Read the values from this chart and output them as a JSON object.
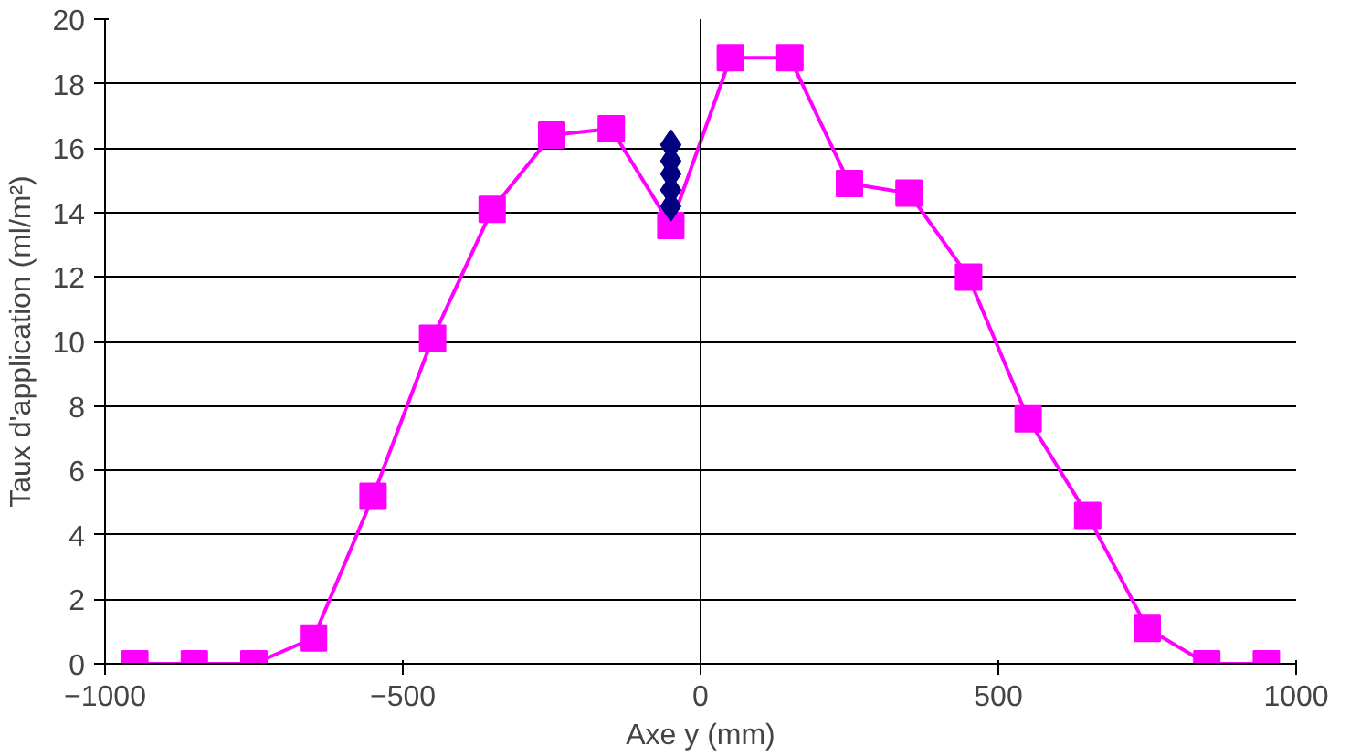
{
  "chart_data": {
    "type": "line",
    "xlabel": "Axe y (mm)",
    "ylabel": "Taux d'application (ml/m²)",
    "xlim": [
      -1000,
      1000
    ],
    "xticks": [
      -1000,
      -500,
      0,
      500,
      1000
    ],
    "ylim": [
      0,
      20
    ],
    "yticks": [
      0,
      2,
      4,
      6,
      8,
      10,
      12,
      14,
      16,
      18,
      20
    ],
    "grid": "y",
    "ref_lines": [
      {
        "axis": "x",
        "value": 0,
        "color": "#000000"
      }
    ],
    "series": [
      {
        "marker": "square",
        "color": "#ff00ff",
        "x": [
          -950,
          -850,
          -750,
          -650,
          -550,
          -450,
          -350,
          -250,
          -150,
          -50,
          50,
          150,
          250,
          350,
          450,
          550,
          650,
          750,
          850,
          950
        ],
        "values": [
          0,
          0,
          0,
          0.8,
          5.2,
          10.1,
          14.1,
          16.4,
          16.6,
          13.6,
          18.8,
          18.8,
          14.9,
          14.6,
          12.0,
          7.6,
          4.6,
          1.1,
          0,
          0
        ]
      },
      {
        "type": "scatter",
        "marker": "diamond",
        "color": "#000080",
        "x": [
          -50,
          -50,
          -50,
          -50,
          -50
        ],
        "values": [
          16.1,
          15.6,
          15.2,
          14.7,
          14.2
        ]
      }
    ]
  }
}
